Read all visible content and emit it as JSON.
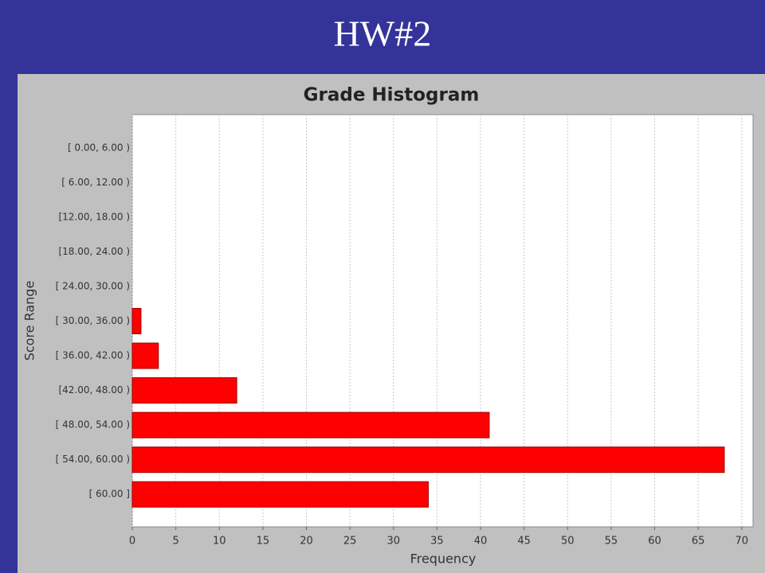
{
  "slide_title": "HW#2",
  "chart_data": {
    "type": "bar",
    "orientation": "horizontal",
    "title": "Grade Histogram",
    "x_label": "Frequency",
    "y_label": "Score Range",
    "categories": [
      "[ 0.00, 6.00 )",
      "[ 6.00, 12.00 )",
      "[12.00, 18.00 )",
      "[18.00, 24.00 )",
      "[ 24.00, 30.00 )",
      "[ 30.00, 36.00 )",
      "[ 36.00, 42.00 )",
      "[42.00, 48.00 )",
      "[ 48.00, 54.00 )",
      "[ 54.00, 60.00 )",
      "[ 60.00 ]"
    ],
    "values": [
      0,
      0,
      0,
      0,
      0,
      1,
      3,
      12,
      41,
      68,
      34
    ],
    "color": "#ff0000",
    "xlim": [
      0,
      71.3
    ],
    "xticks": [
      0,
      5,
      10,
      15,
      20,
      25,
      30,
      35,
      40,
      45,
      50,
      55,
      60,
      65,
      70
    ],
    "grid": true
  }
}
